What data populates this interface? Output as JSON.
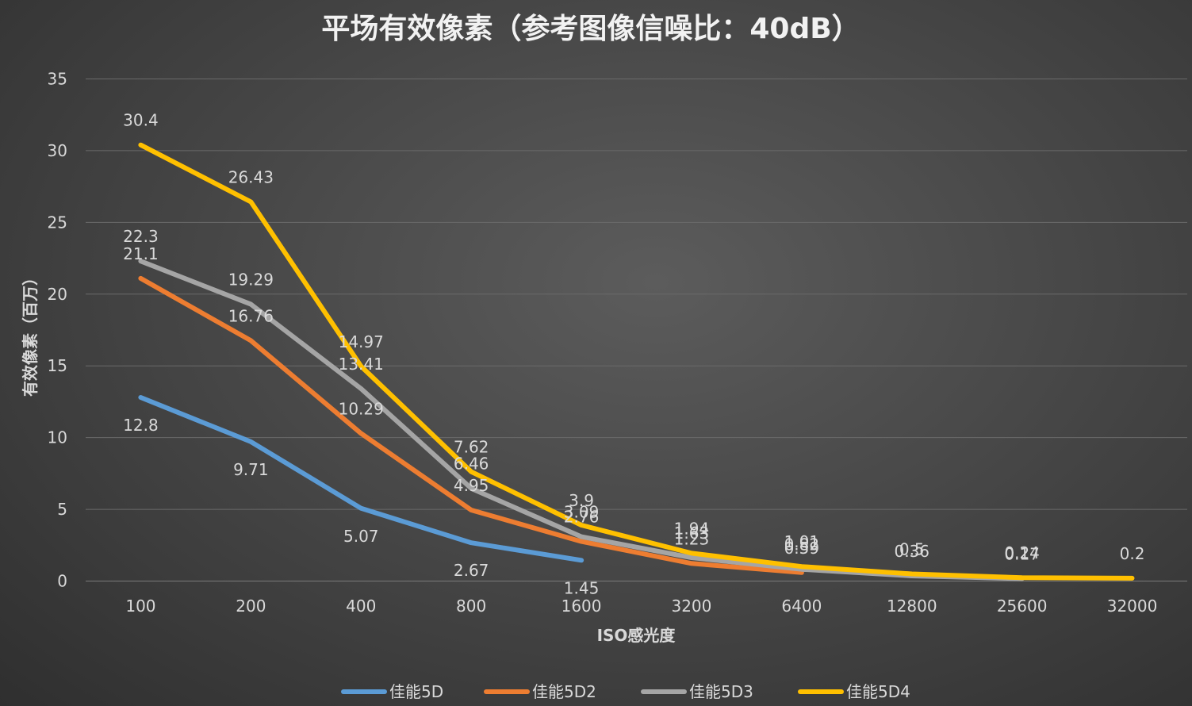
{
  "chart_data": {
    "type": "line",
    "title": "平场有效像素（参考图像信噪比：40dB）",
    "xlabel": "ISO感光度",
    "ylabel": "有效像素（百万）",
    "ylim": [
      0,
      35
    ],
    "yticks": [
      0,
      5,
      10,
      15,
      20,
      25,
      30,
      35
    ],
    "grid": true,
    "legend": "bottom",
    "categories": [
      "100",
      "200",
      "400",
      "800",
      "1600",
      "3200",
      "6400",
      "12800",
      "25600",
      "32000"
    ],
    "series": [
      {
        "name": "佳能5D",
        "color": "#5b9bd5",
        "values": [
          12.8,
          9.71,
          5.07,
          2.67,
          1.45,
          null,
          null,
          null,
          null,
          null
        ]
      },
      {
        "name": "佳能5D2",
        "color": "#ed7d31",
        "values": [
          21.1,
          16.76,
          10.29,
          4.95,
          2.76,
          1.23,
          0.59,
          null,
          null,
          null
        ]
      },
      {
        "name": "佳能5D3",
        "color": "#a5a5a5",
        "values": [
          22.3,
          19.29,
          13.41,
          6.46,
          3.09,
          1.63,
          0.82,
          0.36,
          0.17,
          null
        ]
      },
      {
        "name": "佳能5D4",
        "color": "#ffc000",
        "values": [
          30.4,
          26.43,
          14.97,
          7.62,
          3.9,
          1.94,
          1.01,
          0.5,
          0.24,
          0.2
        ]
      }
    ]
  }
}
